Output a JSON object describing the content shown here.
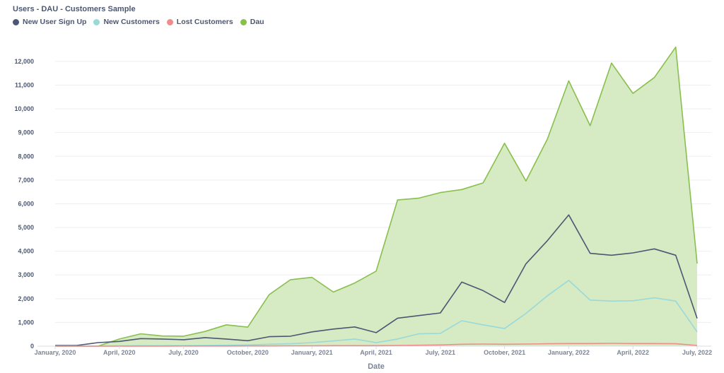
{
  "chart_data": {
    "type": "area",
    "title": "Users - DAU - Customers Sample",
    "xlabel": "Date",
    "ylabel": "",
    "ylim": [
      0,
      12800
    ],
    "yticks": [
      0,
      1000,
      2000,
      3000,
      4000,
      5000,
      6000,
      7000,
      8000,
      9000,
      10000,
      11000,
      12000
    ],
    "ytick_labels": [
      "0",
      "1,000",
      "2,000",
      "3,000",
      "4,000",
      "5,000",
      "6,000",
      "7,000",
      "8,000",
      "9,000",
      "10,000",
      "11,000",
      "12,000"
    ],
    "x_ticks": [
      {
        "index": 0,
        "label": "January, 2020"
      },
      {
        "index": 3,
        "label": "April, 2020"
      },
      {
        "index": 6,
        "label": "July, 2020"
      },
      {
        "index": 9,
        "label": "October, 2020"
      },
      {
        "index": 12,
        "label": "January, 2021"
      },
      {
        "index": 15,
        "label": "April, 2021"
      },
      {
        "index": 18,
        "label": "July, 2021"
      },
      {
        "index": 21,
        "label": "October, 2021"
      },
      {
        "index": 24,
        "label": "January, 2022"
      },
      {
        "index": 27,
        "label": "April, 2022"
      },
      {
        "index": 30,
        "label": "July, 2022"
      }
    ],
    "x": [
      "2020-01",
      "2020-02",
      "2020-03",
      "2020-04",
      "2020-05",
      "2020-06",
      "2020-07",
      "2020-08",
      "2020-09",
      "2020-10",
      "2020-11",
      "2020-12",
      "2021-01",
      "2021-02",
      "2021-03",
      "2021-04",
      "2021-05",
      "2021-06",
      "2021-07",
      "2021-08",
      "2021-09",
      "2021-10",
      "2021-11",
      "2021-12",
      "2022-01",
      "2022-02",
      "2022-03",
      "2022-04",
      "2022-05",
      "2022-06",
      "2022-07"
    ],
    "series": [
      {
        "name": "Dau",
        "kind": "area",
        "color": "#88bf4d",
        "fill": "#d6eac4",
        "values": [
          0,
          0,
          0,
          300,
          520,
          430,
          420,
          620,
          900,
          800,
          2170,
          2800,
          2900,
          2280,
          2660,
          3160,
          6160,
          6240,
          6470,
          6600,
          6880,
          8550,
          6960,
          8720,
          11180,
          9290,
          11930,
          10650,
          11320,
          12600,
          3480
        ]
      },
      {
        "name": "New User Sign Up",
        "kind": "line",
        "color": "#4c5773",
        "values": [
          30,
          30,
          150,
          200,
          320,
          300,
          270,
          360,
          300,
          230,
          400,
          420,
          600,
          720,
          810,
          570,
          1180,
          1290,
          1400,
          2700,
          2340,
          1840,
          3470,
          4440,
          5530,
          3910,
          3830,
          3930,
          4100,
          3830,
          1170
        ]
      },
      {
        "name": "New Customers",
        "kind": "line",
        "color": "#98d9d9",
        "values": [
          0,
          0,
          0,
          10,
          20,
          20,
          20,
          30,
          40,
          50,
          80,
          100,
          150,
          220,
          300,
          150,
          300,
          520,
          540,
          1070,
          900,
          740,
          1380,
          2120,
          2770,
          1940,
          1900,
          1910,
          2040,
          1900,
          600
        ]
      },
      {
        "name": "Lost Customers",
        "kind": "line",
        "color": "#ef8c8c",
        "values": [
          0,
          0,
          0,
          0,
          0,
          0,
          5,
          5,
          5,
          10,
          10,
          15,
          15,
          20,
          20,
          20,
          30,
          40,
          50,
          80,
          90,
          80,
          90,
          100,
          110,
          110,
          120,
          110,
          110,
          100,
          30
        ]
      }
    ],
    "legend_order": [
      "New User Sign Up",
      "New Customers",
      "Lost Customers",
      "Dau"
    ],
    "grid": true,
    "legend_position": "top-left"
  }
}
